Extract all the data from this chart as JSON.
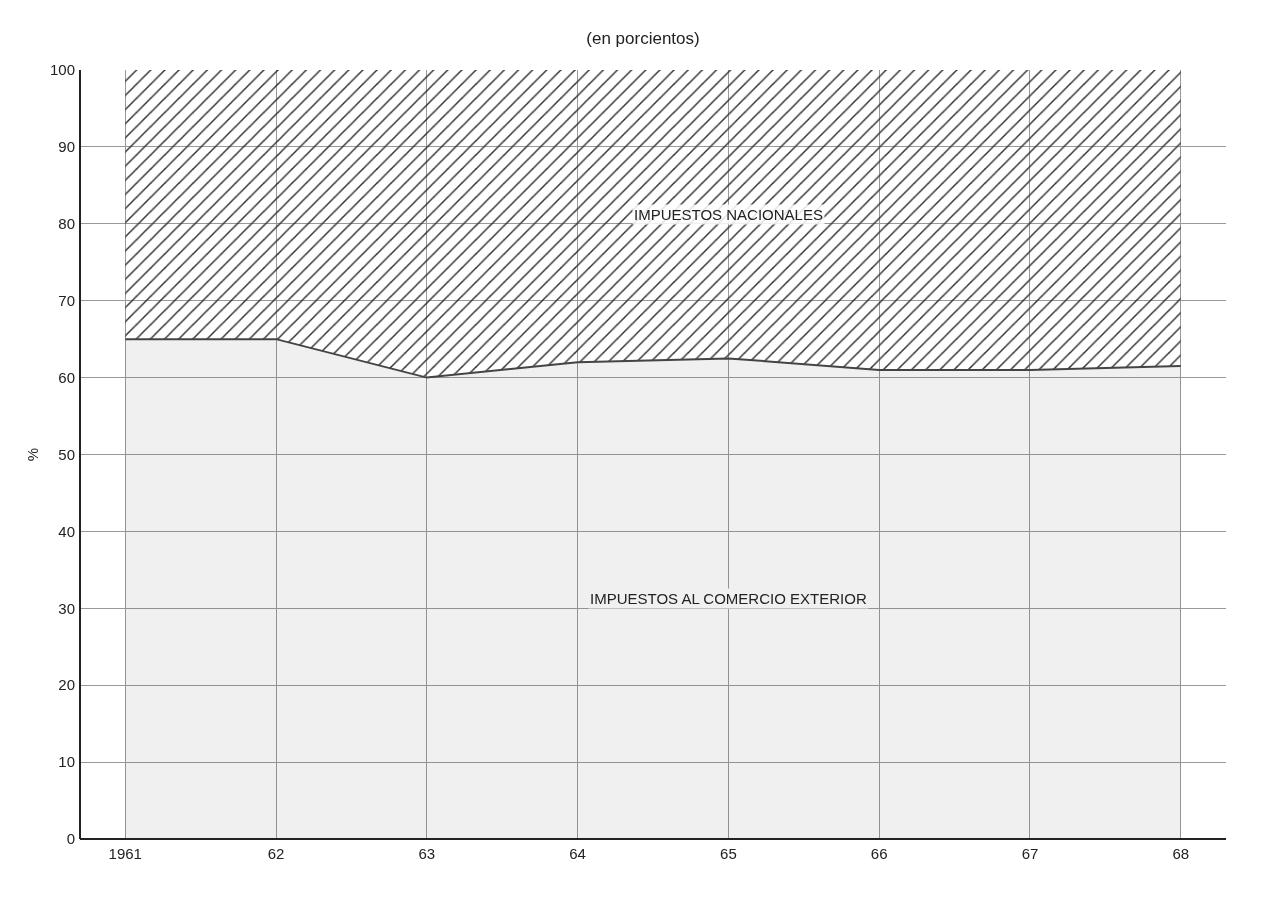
{
  "chart_data": {
    "type": "area",
    "title": "(en porcientos)",
    "ylabel": "%",
    "stacked": true,
    "categories": [
      "1961",
      "62",
      "63",
      "64",
      "65",
      "66",
      "67",
      "68"
    ],
    "series": [
      {
        "name": "IMPUESTOS AL COMERCIO EXTERIOR",
        "color": "#444444",
        "values": [
          65,
          65,
          60,
          62,
          62.5,
          61,
          61,
          61.5
        ]
      },
      {
        "name": "IMPUESTOS NACIONALES",
        "color": "#333333",
        "values": [
          35,
          35,
          40,
          38,
          37.5,
          39,
          39,
          38.5
        ]
      }
    ],
    "ylim": [
      0,
      100
    ],
    "yticks": [
      0,
      10,
      20,
      30,
      40,
      50,
      60,
      70,
      80,
      90,
      100
    ],
    "grid": true,
    "legend": false
  }
}
